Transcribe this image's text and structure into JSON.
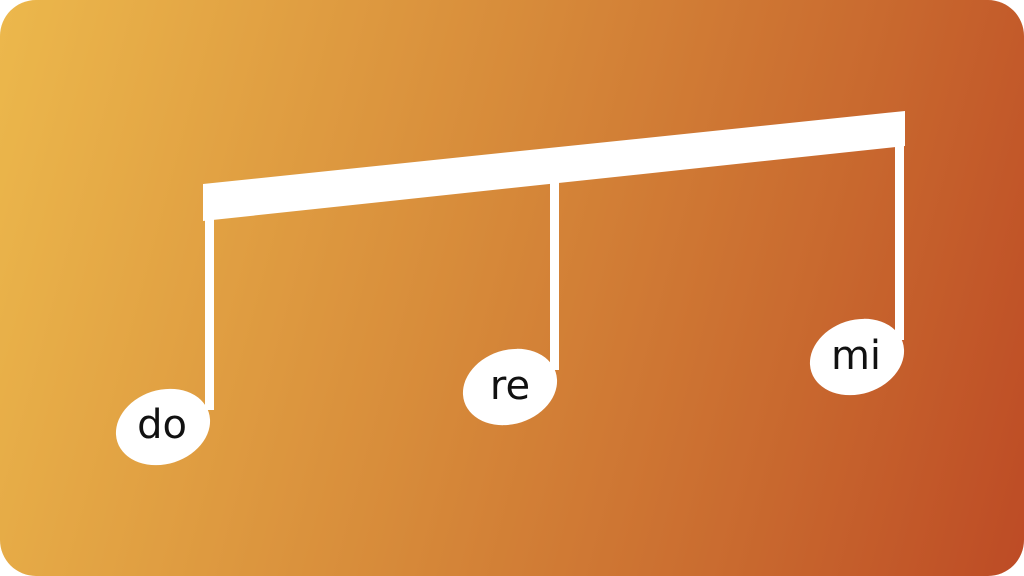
{
  "syllables": [
    "do",
    "re",
    "mi"
  ],
  "colors": {
    "gradient_start": "#ecb84c",
    "gradient_end": "#bd4b25",
    "notes": "#ffffff",
    "text": "#111111"
  }
}
